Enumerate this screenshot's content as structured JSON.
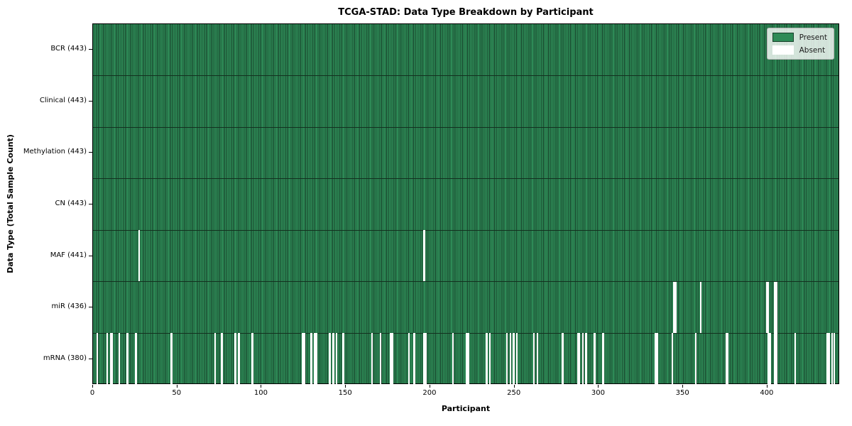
{
  "title": "TCGA-STAD: Data Type Breakdown by Participant",
  "chart_data": {
    "type": "heatmap",
    "title": "TCGA-STAD: Data Type Breakdown by Participant",
    "xlabel": "Participant",
    "ylabel": "Data Type (Total Sample Count)",
    "n_participants": 443,
    "x_ticks": [
      0,
      50,
      100,
      150,
      200,
      250,
      300,
      350,
      400
    ],
    "legend_position": "upper right",
    "grid": false,
    "colors": {
      "present": "#2e8b57",
      "absent": "#ffffff",
      "cell_edge": "#17402a",
      "row_separator": "#13301f"
    },
    "legend": [
      {
        "label": "Present",
        "color": "#2e8b57"
      },
      {
        "label": "Absent",
        "color": "#ffffff"
      }
    ],
    "rows": [
      {
        "name": "BCR",
        "label": "BCR (443)",
        "present_count": 443,
        "absent_count": 0,
        "absent_participants": []
      },
      {
        "name": "Clinical",
        "label": "Clinical (443)",
        "present_count": 443,
        "absent_count": 0,
        "absent_participants": []
      },
      {
        "name": "Methylation",
        "label": "Methylation (443)",
        "present_count": 443,
        "absent_count": 0,
        "absent_participants": []
      },
      {
        "name": "CN",
        "label": "CN (443)",
        "present_count": 443,
        "absent_count": 0,
        "absent_participants": []
      },
      {
        "name": "MAF",
        "label": "MAF (441)",
        "present_count": 441,
        "absent_count": 2,
        "absent_participants": [
          27,
          196
        ]
      },
      {
        "name": "miR",
        "label": "miR (436)",
        "present_count": 436,
        "absent_count": 7,
        "absent_participants": [
          344,
          345,
          360,
          399,
          400,
          404,
          405
        ]
      },
      {
        "name": "mRNA",
        "label": "mRNA (380)",
        "present_count": 380,
        "absent_count": 63,
        "absent_participants": [
          2,
          8,
          10,
          11,
          15,
          20,
          25,
          46,
          72,
          76,
          84,
          86,
          94,
          124,
          125,
          129,
          131,
          132,
          140,
          142,
          144,
          148,
          165,
          170,
          176,
          177,
          187,
          190,
          196,
          197,
          213,
          221,
          222,
          233,
          235,
          245,
          247,
          249,
          251,
          261,
          263,
          278,
          287,
          288,
          290,
          292,
          297,
          302,
          333,
          334,
          343,
          357,
          375,
          376,
          400,
          401,
          404,
          405,
          416,
          435,
          436,
          438,
          439
        ]
      }
    ]
  }
}
